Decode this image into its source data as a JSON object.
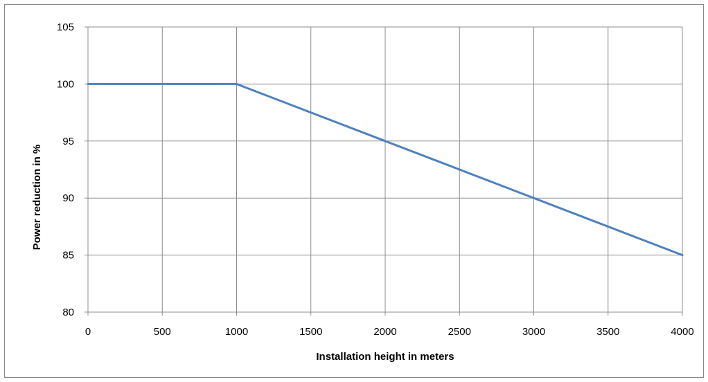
{
  "chart_data": {
    "type": "line",
    "title": "",
    "xlabel": "Installation height in meters",
    "ylabel": "Power reduction in %",
    "xlim": [
      0,
      4000
    ],
    "ylim": [
      80,
      105
    ],
    "x_ticks": [
      0,
      500,
      1000,
      1500,
      2000,
      2500,
      3000,
      3500,
      4000
    ],
    "y_ticks": [
      80,
      85,
      90,
      95,
      100,
      105
    ],
    "x_tick_labels": [
      "0",
      "500",
      "1000",
      "1500",
      "2000",
      "2500",
      "3000",
      "3500",
      "4000"
    ],
    "y_tick_labels": [
      "80",
      "85",
      "90",
      "95",
      "100",
      "105"
    ],
    "grid": true,
    "legend": "none",
    "series": [
      {
        "x": [
          0,
          1000,
          2000,
          3000,
          4000
        ],
        "y": [
          100,
          100,
          95,
          90,
          85
        ],
        "color": "#4f81bd"
      }
    ],
    "colors": {
      "line": "#4f81bd",
      "grid": "#8c8c8c",
      "frame": "#898989",
      "text": "#000000"
    }
  }
}
